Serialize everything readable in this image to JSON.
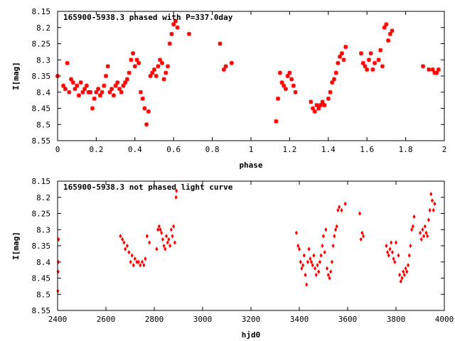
{
  "colors": {
    "points": "#ff0000",
    "frame": "#000000",
    "background": "#ffffff"
  },
  "chart_data": [
    {
      "type": "scatter",
      "title": "165900-5938.3 phased with P=337.0day",
      "xlabel": "phase",
      "ylabel": "I[mag]",
      "xlim": [
        0,
        2
      ],
      "ylim": [
        8.55,
        8.15
      ],
      "y_inverted": true,
      "grid": false,
      "marker": "star",
      "xticks": [
        "0",
        "0.2",
        "0.4",
        "0.6",
        "0.8",
        "1",
        "1.2",
        "1.4",
        "1.6",
        "1.8",
        "2"
      ],
      "yticks": [
        "8.15",
        "8.2",
        "8.25",
        "8.3",
        "8.35",
        "8.4",
        "8.45",
        "8.5",
        "8.55"
      ],
      "series": [
        {
          "points": [
            [
              0.0,
              8.35
            ],
            [
              0.03,
              8.38
            ],
            [
              0.04,
              8.39
            ],
            [
              0.05,
              8.31
            ],
            [
              0.06,
              8.4
            ],
            [
              0.07,
              8.36
            ],
            [
              0.08,
              8.37
            ],
            [
              0.09,
              8.39
            ],
            [
              0.1,
              8.38
            ],
            [
              0.11,
              8.41
            ],
            [
              0.12,
              8.37
            ],
            [
              0.13,
              8.4
            ],
            [
              0.14,
              8.39
            ],
            [
              0.15,
              8.38
            ],
            [
              0.16,
              8.4
            ],
            [
              0.17,
              8.4
            ],
            [
              0.18,
              8.45
            ],
            [
              0.19,
              8.42
            ],
            [
              0.2,
              8.4
            ],
            [
              0.21,
              8.39
            ],
            [
              0.22,
              8.41
            ],
            [
              0.23,
              8.4
            ],
            [
              0.24,
              8.38
            ],
            [
              0.25,
              8.35
            ],
            [
              0.26,
              8.32
            ],
            [
              0.27,
              8.4
            ],
            [
              0.28,
              8.39
            ],
            [
              0.29,
              8.41
            ],
            [
              0.3,
              8.38
            ],
            [
              0.31,
              8.37
            ],
            [
              0.32,
              8.39
            ],
            [
              0.33,
              8.4
            ],
            [
              0.34,
              8.38
            ],
            [
              0.35,
              8.37
            ],
            [
              0.36,
              8.36
            ],
            [
              0.37,
              8.34
            ],
            [
              0.38,
              8.3
            ],
            [
              0.39,
              8.28
            ],
            [
              0.4,
              8.32
            ],
            [
              0.41,
              8.3
            ],
            [
              0.42,
              8.31
            ],
            [
              0.43,
              8.4
            ],
            [
              0.44,
              8.42
            ],
            [
              0.45,
              8.45
            ],
            [
              0.46,
              8.5
            ],
            [
              0.47,
              8.46
            ],
            [
              0.48,
              8.35
            ],
            [
              0.49,
              8.34
            ],
            [
              0.5,
              8.33
            ],
            [
              0.51,
              8.35
            ],
            [
              0.52,
              8.32
            ],
            [
              0.53,
              8.3
            ],
            [
              0.54,
              8.31
            ],
            [
              0.55,
              8.36
            ],
            [
              0.56,
              8.34
            ],
            [
              0.57,
              8.32
            ],
            [
              0.58,
              8.25
            ],
            [
              0.59,
              8.22
            ],
            [
              0.6,
              8.19
            ],
            [
              0.61,
              8.18
            ],
            [
              0.62,
              8.2
            ],
            [
              0.68,
              8.22
            ],
            [
              0.84,
              8.25
            ],
            [
              0.86,
              8.33
            ],
            [
              0.87,
              8.32
            ],
            [
              0.9,
              8.31
            ],
            [
              1.13,
              8.49
            ],
            [
              1.14,
              8.42
            ],
            [
              1.15,
              8.34
            ],
            [
              1.16,
              8.37
            ],
            [
              1.17,
              8.38
            ],
            [
              1.18,
              8.39
            ],
            [
              1.19,
              8.35
            ],
            [
              1.2,
              8.34
            ],
            [
              1.21,
              8.36
            ],
            [
              1.22,
              8.38
            ],
            [
              1.23,
              8.4
            ],
            [
              1.31,
              8.43
            ],
            [
              1.32,
              8.45
            ],
            [
              1.33,
              8.46
            ],
            [
              1.34,
              8.44
            ],
            [
              1.35,
              8.45
            ],
            [
              1.36,
              8.44
            ],
            [
              1.37,
              8.43
            ],
            [
              1.38,
              8.44
            ],
            [
              1.4,
              8.42
            ],
            [
              1.41,
              8.4
            ],
            [
              1.42,
              8.37
            ],
            [
              1.43,
              8.36
            ],
            [
              1.44,
              8.34
            ],
            [
              1.45,
              8.31
            ],
            [
              1.46,
              8.29
            ],
            [
              1.47,
              8.28
            ],
            [
              1.48,
              8.3
            ],
            [
              1.49,
              8.26
            ],
            [
              1.57,
              8.28
            ],
            [
              1.58,
              8.31
            ],
            [
              1.59,
              8.32
            ],
            [
              1.6,
              8.33
            ],
            [
              1.61,
              8.3
            ],
            [
              1.62,
              8.28
            ],
            [
              1.63,
              8.33
            ],
            [
              1.64,
              8.31
            ],
            [
              1.66,
              8.3
            ],
            [
              1.67,
              8.27
            ],
            [
              1.68,
              8.32
            ],
            [
              1.69,
              8.2
            ],
            [
              1.7,
              8.19
            ],
            [
              1.71,
              8.24
            ],
            [
              1.72,
              8.22
            ],
            [
              1.73,
              8.21
            ],
            [
              1.89,
              8.32
            ],
            [
              1.92,
              8.33
            ],
            [
              1.94,
              8.33
            ],
            [
              1.95,
              8.34
            ],
            [
              1.96,
              8.34
            ],
            [
              1.97,
              8.33
            ]
          ]
        }
      ]
    },
    {
      "type": "scatter",
      "title": "165900-5938.3 not phased light curve",
      "xlabel": "hjd0",
      "ylabel": "I[mag]",
      "xlim": [
        2400,
        4000
      ],
      "ylim": [
        8.55,
        8.15
      ],
      "y_inverted": true,
      "grid": false,
      "marker": "diamond",
      "xticks": [
        "2400",
        "2600",
        "2800",
        "3000",
        "3200",
        "3400",
        "3600",
        "3800",
        "4000"
      ],
      "yticks": [
        "8.15",
        "8.2",
        "8.25",
        "8.3",
        "8.35",
        "8.4",
        "8.45",
        "8.5",
        "8.55"
      ],
      "series": [
        {
          "points": [
            [
              2401,
              8.49
            ],
            [
              2402,
              8.43
            ],
            [
              2403,
              8.4
            ],
            [
              2404,
              8.33
            ],
            [
              2660,
              8.32
            ],
            [
              2668,
              8.33
            ],
            [
              2675,
              8.34
            ],
            [
              2680,
              8.36
            ],
            [
              2688,
              8.35
            ],
            [
              2695,
              8.37
            ],
            [
              2702,
              8.4
            ],
            [
              2708,
              8.38
            ],
            [
              2714,
              8.41
            ],
            [
              2720,
              8.39
            ],
            [
              2728,
              8.4
            ],
            [
              2735,
              8.4
            ],
            [
              2742,
              8.41
            ],
            [
              2750,
              8.4
            ],
            [
              2757,
              8.41
            ],
            [
              2763,
              8.39
            ],
            [
              2770,
              8.32
            ],
            [
              2780,
              8.34
            ],
            [
              2810,
              8.36
            ],
            [
              2815,
              8.3
            ],
            [
              2820,
              8.29
            ],
            [
              2825,
              8.3
            ],
            [
              2830,
              8.31
            ],
            [
              2835,
              8.33
            ],
            [
              2840,
              8.35
            ],
            [
              2845,
              8.36
            ],
            [
              2850,
              8.32
            ],
            [
              2855,
              8.34
            ],
            [
              2860,
              8.33
            ],
            [
              2865,
              8.35
            ],
            [
              2870,
              8.3
            ],
            [
              2875,
              8.32
            ],
            [
              2880,
              8.29
            ],
            [
              2885,
              8.34
            ],
            [
              2890,
              8.2
            ],
            [
              2892,
              8.18
            ],
            [
              3388,
              8.31
            ],
            [
              3395,
              8.35
            ],
            [
              3400,
              8.36
            ],
            [
              3405,
              8.4
            ],
            [
              3410,
              8.42
            ],
            [
              3415,
              8.41
            ],
            [
              3420,
              8.38
            ],
            [
              3425,
              8.44
            ],
            [
              3430,
              8.47
            ],
            [
              3435,
              8.4
            ],
            [
              3440,
              8.36
            ],
            [
              3445,
              8.39
            ],
            [
              3450,
              8.4
            ],
            [
              3455,
              8.41
            ],
            [
              3460,
              8.38
            ],
            [
              3465,
              8.42
            ],
            [
              3470,
              8.44
            ],
            [
              3475,
              8.41
            ],
            [
              3480,
              8.43
            ],
            [
              3485,
              8.4
            ],
            [
              3490,
              8.38
            ],
            [
              3495,
              8.35
            ],
            [
              3500,
              8.32
            ],
            [
              3505,
              8.37
            ],
            [
              3510,
              8.3
            ],
            [
              3515,
              8.42
            ],
            [
              3520,
              8.44
            ],
            [
              3525,
              8.45
            ],
            [
              3530,
              8.43
            ],
            [
              3535,
              8.4
            ],
            [
              3540,
              8.35
            ],
            [
              3545,
              8.32
            ],
            [
              3550,
              8.3
            ],
            [
              3555,
              8.29
            ],
            [
              3560,
              8.24
            ],
            [
              3565,
              8.23
            ],
            [
              3575,
              8.24
            ],
            [
              3590,
              8.22
            ],
            [
              3650,
              8.25
            ],
            [
              3655,
              8.33
            ],
            [
              3660,
              8.31
            ],
            [
              3665,
              8.32
            ],
            [
              3760,
              8.35
            ],
            [
              3765,
              8.37
            ],
            [
              3770,
              8.38
            ],
            [
              3775,
              8.36
            ],
            [
              3780,
              8.34
            ],
            [
              3785,
              8.37
            ],
            [
              3790,
              8.39
            ],
            [
              3795,
              8.4
            ],
            [
              3800,
              8.34
            ],
            [
              3810,
              8.38
            ],
            [
              3815,
              8.44
            ],
            [
              3820,
              8.46
            ],
            [
              3825,
              8.45
            ],
            [
              3830,
              8.43
            ],
            [
              3835,
              8.44
            ],
            [
              3840,
              8.42
            ],
            [
              3845,
              8.43
            ],
            [
              3850,
              8.41
            ],
            [
              3855,
              8.38
            ],
            [
              3860,
              8.35
            ],
            [
              3865,
              8.3
            ],
            [
              3870,
              8.29
            ],
            [
              3875,
              8.26
            ],
            [
              3900,
              8.31
            ],
            [
              3905,
              8.33
            ],
            [
              3910,
              8.3
            ],
            [
              3915,
              8.32
            ],
            [
              3920,
              8.29
            ],
            [
              3925,
              8.31
            ],
            [
              3930,
              8.32
            ],
            [
              3935,
              8.27
            ],
            [
              3940,
              8.24
            ],
            [
              3945,
              8.19
            ],
            [
              3950,
              8.21
            ],
            [
              3955,
              8.24
            ],
            [
              3960,
              8.22
            ]
          ]
        }
      ]
    }
  ]
}
